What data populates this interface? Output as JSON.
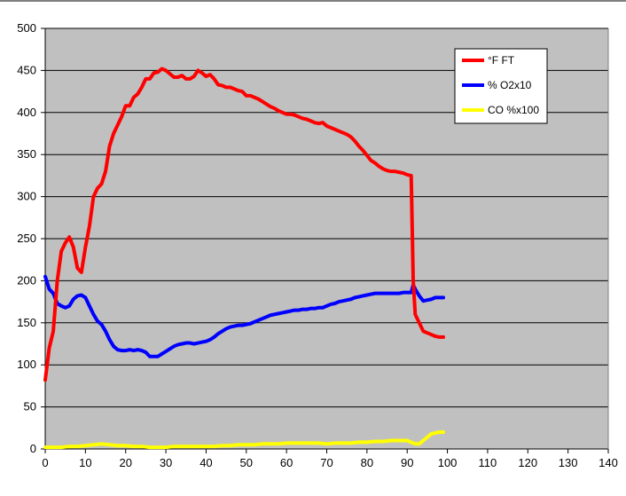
{
  "chart_data": {
    "type": "line",
    "title": "",
    "xlabel": "",
    "ylabel": "",
    "xlim": [
      0,
      140
    ],
    "ylim": [
      0,
      500
    ],
    "x_ticks": [
      0,
      10,
      20,
      30,
      40,
      50,
      60,
      70,
      80,
      90,
      100,
      110,
      120,
      130,
      140
    ],
    "y_ticks": [
      0,
      50,
      100,
      150,
      200,
      250,
      300,
      350,
      400,
      450,
      500
    ],
    "grid": "horizontal",
    "plot_background": "#c0c0c0",
    "legend_position": "top-right",
    "series": [
      {
        "name": "°F FT",
        "color": "#ff0000",
        "x": [
          0,
          1,
          2,
          3,
          4,
          5,
          6,
          7,
          8,
          9,
          10,
          11,
          12,
          13,
          14,
          15,
          16,
          17,
          18,
          19,
          20,
          21,
          22,
          23,
          24,
          25,
          26,
          27,
          28,
          29,
          30,
          31,
          32,
          33,
          34,
          35,
          36,
          37,
          38,
          39,
          40,
          41,
          42,
          43,
          44,
          45,
          46,
          47,
          48,
          49,
          50,
          51,
          52,
          53,
          54,
          55,
          56,
          57,
          58,
          59,
          60,
          61,
          62,
          63,
          64,
          65,
          66,
          67,
          68,
          69,
          70,
          71,
          72,
          73,
          74,
          75,
          76,
          77,
          78,
          79,
          80,
          81,
          82,
          83,
          84,
          85,
          86,
          87,
          88,
          89,
          90,
          91,
          91.5,
          92,
          93,
          94,
          95,
          96,
          97,
          98,
          99
        ],
        "values": [
          82,
          120,
          140,
          200,
          235,
          245,
          252,
          240,
          215,
          210,
          240,
          265,
          300,
          310,
          315,
          330,
          360,
          375,
          385,
          395,
          408,
          408,
          418,
          422,
          430,
          440,
          440,
          447,
          448,
          452,
          450,
          446,
          442,
          442,
          444,
          440,
          440,
          443,
          450,
          447,
          443,
          445,
          440,
          433,
          432,
          430,
          430,
          428,
          426,
          425,
          420,
          420,
          418,
          416,
          413,
          410,
          407,
          405,
          402,
          400,
          398,
          398,
          397,
          395,
          393,
          392,
          390,
          388,
          387,
          388,
          384,
          382,
          380,
          378,
          376,
          374,
          371,
          366,
          360,
          355,
          349,
          343,
          340,
          336,
          333,
          331,
          330,
          330,
          329,
          328,
          326,
          325,
          200,
          160,
          150,
          140,
          138,
          136,
          134,
          133,
          133
        ]
      },
      {
        "name": "% O2x10",
        "color": "#0000ff",
        "x": [
          0,
          1,
          2,
          3,
          4,
          5,
          6,
          7,
          8,
          9,
          10,
          11,
          12,
          13,
          14,
          15,
          16,
          17,
          18,
          19,
          20,
          21,
          22,
          23,
          24,
          25,
          26,
          27,
          28,
          29,
          30,
          31,
          32,
          33,
          34,
          35,
          36,
          37,
          38,
          39,
          40,
          41,
          42,
          43,
          44,
          45,
          46,
          47,
          48,
          49,
          50,
          51,
          52,
          53,
          54,
          55,
          56,
          57,
          58,
          59,
          60,
          61,
          62,
          63,
          64,
          65,
          66,
          67,
          68,
          69,
          70,
          71,
          72,
          73,
          74,
          75,
          76,
          77,
          78,
          79,
          80,
          81,
          82,
          83,
          84,
          85,
          86,
          87,
          88,
          89,
          90,
          91,
          91.5,
          92,
          93,
          94,
          95,
          96,
          97,
          98,
          99
        ],
        "values": [
          205,
          190,
          185,
          173,
          170,
          168,
          170,
          178,
          182,
          183,
          180,
          170,
          160,
          152,
          148,
          140,
          130,
          122,
          118,
          117,
          117,
          118,
          117,
          118,
          117,
          115,
          110,
          110,
          110,
          113,
          116,
          119,
          122,
          124,
          125,
          126,
          126,
          125,
          126,
          127,
          128,
          130,
          133,
          137,
          140,
          143,
          145,
          146,
          147,
          147,
          148,
          149,
          151,
          153,
          155,
          157,
          159,
          160,
          161,
          162,
          163,
          164,
          165,
          165,
          166,
          166,
          167,
          167,
          168,
          168,
          170,
          172,
          173,
          175,
          176,
          177,
          178,
          180,
          181,
          182,
          183,
          184,
          185,
          185,
          185,
          185,
          185,
          185,
          185,
          186,
          186,
          186,
          195,
          190,
          182,
          176,
          177,
          178,
          180,
          180,
          180
        ]
      },
      {
        "name": "CO %x100",
        "color": "#ffff00",
        "x": [
          0,
          2,
          4,
          6,
          8,
          10,
          12,
          14,
          16,
          18,
          20,
          22,
          24,
          26,
          28,
          30,
          32,
          34,
          36,
          38,
          40,
          42,
          44,
          46,
          48,
          50,
          52,
          54,
          56,
          58,
          60,
          62,
          64,
          66,
          68,
          70,
          72,
          74,
          76,
          78,
          80,
          82,
          84,
          86,
          88,
          90,
          91,
          92,
          93,
          94,
          95,
          96,
          97,
          98,
          99
        ],
        "values": [
          2,
          2,
          2,
          3,
          3,
          4,
          5,
          6,
          5,
          4,
          4,
          3,
          3,
          2,
          2,
          2,
          3,
          3,
          3,
          3,
          3,
          3,
          4,
          4,
          5,
          5,
          5,
          6,
          6,
          6,
          7,
          7,
          7,
          7,
          7,
          6,
          7,
          7,
          7,
          8,
          8,
          9,
          9,
          10,
          10,
          10,
          8,
          6,
          6,
          10,
          14,
          18,
          19,
          20,
          20
        ]
      }
    ]
  }
}
